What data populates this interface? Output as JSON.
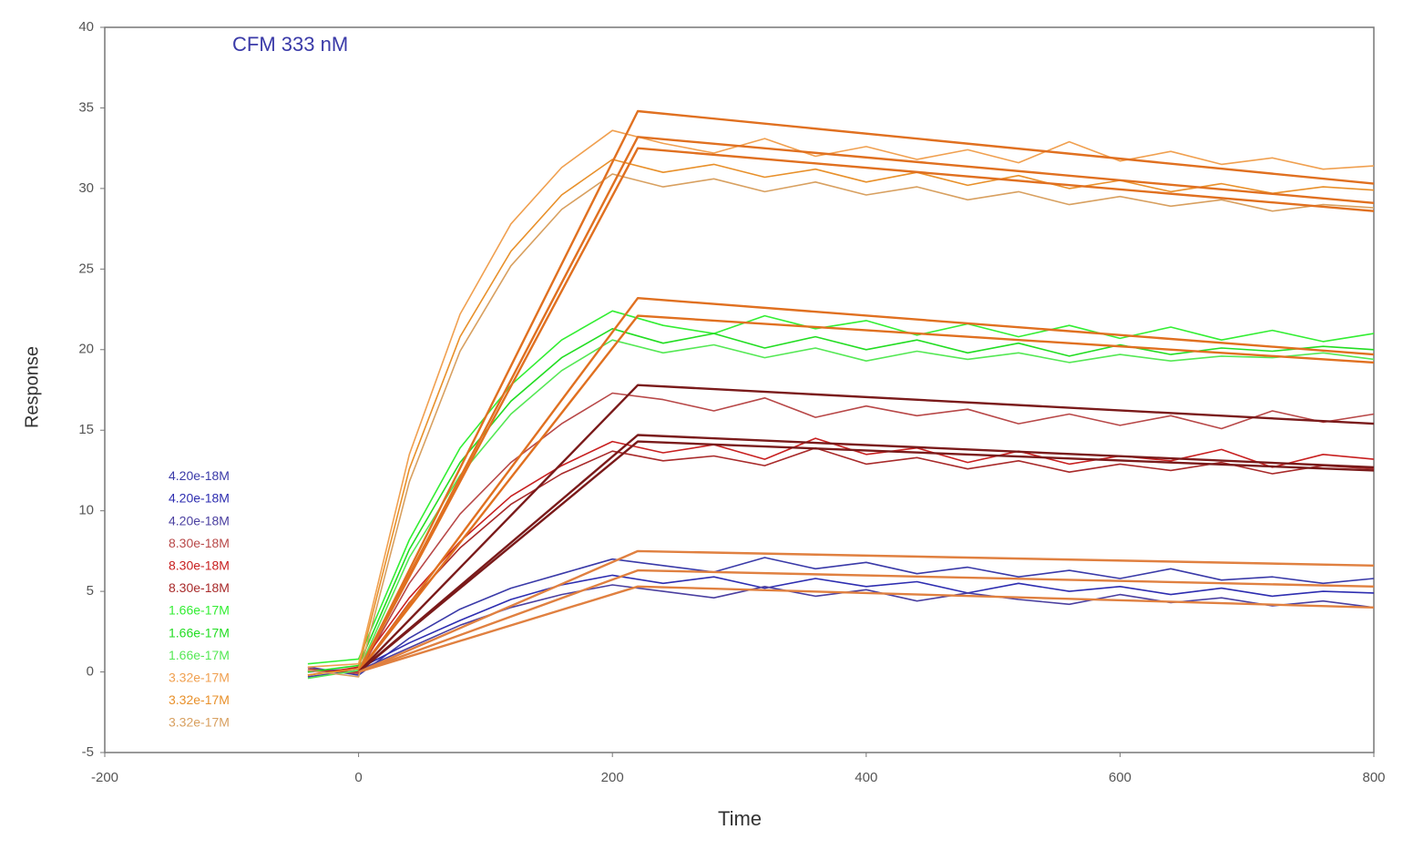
{
  "chart_data": {
    "type": "line",
    "title": "CFM 333 nM",
    "xlabel": "Time",
    "ylabel": "Response",
    "xlim": [
      -200,
      800
    ],
    "ylim": [
      -5,
      40
    ],
    "xticks": [
      -200,
      0,
      200,
      400,
      600,
      800
    ],
    "yticks": [
      -5,
      0,
      5,
      10,
      15,
      20,
      25,
      30,
      35,
      40
    ],
    "grid": false,
    "legend": "lower left",
    "x": [
      -40,
      0,
      40,
      80,
      120,
      160,
      200,
      240,
      280,
      320,
      360,
      400,
      440,
      480,
      520,
      560,
      600,
      640,
      680,
      720,
      760,
      800
    ],
    "series": [
      {
        "name": "4.20e-18M",
        "color": "#3a3aa8",
        "values": [
          0.3,
          -0.2,
          2.1,
          3.9,
          5.2,
          6.1,
          7.0,
          6.6,
          6.2,
          7.1,
          6.4,
          6.8,
          6.1,
          6.5,
          5.9,
          6.3,
          5.8,
          6.4,
          5.7,
          5.9,
          5.5,
          5.8
        ]
      },
      {
        "name": "4.20e-18M",
        "color": "#2d2db0",
        "values": [
          0.0,
          0.2,
          1.8,
          3.2,
          4.5,
          5.4,
          6.0,
          5.5,
          5.9,
          5.2,
          5.8,
          5.3,
          5.6,
          4.9,
          5.5,
          5.0,
          5.3,
          4.8,
          5.2,
          4.7,
          5.0,
          4.9
        ]
      },
      {
        "name": "4.20e-18M",
        "color": "#4a3fa0",
        "values": [
          -0.3,
          0.1,
          1.5,
          2.9,
          4.0,
          4.8,
          5.4,
          5.0,
          4.6,
          5.3,
          4.7,
          5.1,
          4.4,
          4.9,
          4.5,
          4.2,
          4.8,
          4.3,
          4.6,
          4.1,
          4.4,
          4.0
        ]
      },
      {
        "name": "8.30e-18M",
        "color": "#b84848",
        "values": [
          0.2,
          -0.1,
          5.5,
          9.8,
          13.0,
          15.4,
          17.3,
          16.9,
          16.2,
          17.0,
          15.8,
          16.5,
          15.9,
          16.3,
          15.4,
          16.0,
          15.3,
          15.9,
          15.1,
          16.2,
          15.5,
          16.0
        ]
      },
      {
        "name": "8.30e-18M",
        "color": "#c82020",
        "values": [
          -0.2,
          0.3,
          4.6,
          8.1,
          10.9,
          12.8,
          14.3,
          13.6,
          14.1,
          13.2,
          14.5,
          13.5,
          13.9,
          13.0,
          13.7,
          12.9,
          13.4,
          13.1,
          13.8,
          12.7,
          13.5,
          13.2
        ]
      },
      {
        "name": "8.30e-18M",
        "color": "#a82a2a",
        "values": [
          0.1,
          0.0,
          4.3,
          7.7,
          10.4,
          12.3,
          13.7,
          13.1,
          13.4,
          12.8,
          13.9,
          12.9,
          13.3,
          12.6,
          13.1,
          12.4,
          12.9,
          12.5,
          13.0,
          12.3,
          12.8,
          12.6
        ]
      },
      {
        "name": "1.66e-17M",
        "color": "#33ee33",
        "values": [
          0.5,
          0.8,
          8.2,
          13.9,
          17.8,
          20.6,
          22.4,
          21.5,
          21.0,
          22.1,
          21.3,
          21.8,
          20.9,
          21.6,
          20.8,
          21.5,
          20.7,
          21.4,
          20.6,
          21.2,
          20.5,
          21.0
        ]
      },
      {
        "name": "1.66e-17M",
        "color": "#22dd22",
        "values": [
          0.0,
          0.4,
          7.6,
          13.0,
          16.8,
          19.5,
          21.3,
          20.4,
          21.0,
          20.1,
          20.8,
          20.0,
          20.6,
          19.8,
          20.4,
          19.6,
          20.3,
          19.7,
          20.1,
          19.9,
          20.2,
          20.0
        ]
      },
      {
        "name": "1.66e-17M",
        "color": "#55e855",
        "values": [
          -0.4,
          0.1,
          7.1,
          12.2,
          16.0,
          18.7,
          20.6,
          19.8,
          20.3,
          19.5,
          20.1,
          19.3,
          19.9,
          19.4,
          19.8,
          19.2,
          19.7,
          19.3,
          19.6,
          19.5,
          19.8,
          19.4
        ]
      },
      {
        "name": "3.32e-17M",
        "color": "#f0a050",
        "values": [
          0.3,
          0.5,
          13.5,
          22.2,
          27.8,
          31.3,
          33.6,
          32.8,
          32.2,
          33.1,
          32.0,
          32.6,
          31.8,
          32.4,
          31.6,
          32.9,
          31.7,
          32.3,
          31.5,
          31.9,
          31.2,
          31.4
        ]
      },
      {
        "name": "3.32e-17M",
        "color": "#e8902a",
        "values": [
          -0.2,
          0.2,
          12.6,
          20.8,
          26.1,
          29.6,
          31.8,
          31.0,
          31.5,
          30.7,
          31.2,
          30.4,
          31.0,
          30.2,
          30.8,
          30.0,
          30.5,
          29.8,
          30.3,
          29.7,
          30.1,
          29.9
        ]
      },
      {
        "name": "3.32e-17M",
        "color": "#d8a060",
        "values": [
          0.1,
          -0.3,
          11.8,
          19.9,
          25.2,
          28.7,
          30.9,
          30.1,
          30.6,
          29.8,
          30.4,
          29.6,
          30.1,
          29.3,
          29.8,
          29.0,
          29.5,
          28.9,
          29.3,
          28.6,
          29.0,
          28.8
        ]
      },
      {
        "color": "#e07020",
        "x": [
          0,
          220,
          800
        ],
        "values": [
          0,
          34.8,
          30.3
        ]
      },
      {
        "color": "#e07020",
        "x": [
          0,
          220,
          800
        ],
        "values": [
          0,
          33.2,
          29.1
        ]
      },
      {
        "color": "#e07020",
        "x": [
          0,
          220,
          800
        ],
        "values": [
          0,
          32.5,
          28.6
        ]
      },
      {
        "color": "#e07020",
        "x": [
          0,
          220,
          800
        ],
        "values": [
          0,
          23.2,
          19.7
        ]
      },
      {
        "color": "#e07020",
        "x": [
          0,
          220,
          800
        ],
        "values": [
          0,
          22.1,
          19.2
        ]
      },
      {
        "color": "#7a1a1a",
        "x": [
          0,
          220,
          800
        ],
        "values": [
          0,
          17.8,
          15.4
        ]
      },
      {
        "color": "#7a1a1a",
        "x": [
          0,
          220,
          800
        ],
        "values": [
          0,
          14.7,
          12.7
        ]
      },
      {
        "color": "#7a1a1a",
        "x": [
          0,
          220,
          800
        ],
        "values": [
          0,
          14.3,
          12.5
        ]
      },
      {
        "color": "#e08040",
        "x": [
          0,
          220,
          800
        ],
        "values": [
          0,
          7.5,
          6.6
        ]
      },
      {
        "color": "#e08040",
        "x": [
          0,
          220,
          800
        ],
        "values": [
          0,
          6.3,
          5.3
        ]
      },
      {
        "color": "#e08040",
        "x": [
          0,
          220,
          800
        ],
        "values": [
          0,
          5.3,
          4.0
        ]
      }
    ]
  }
}
